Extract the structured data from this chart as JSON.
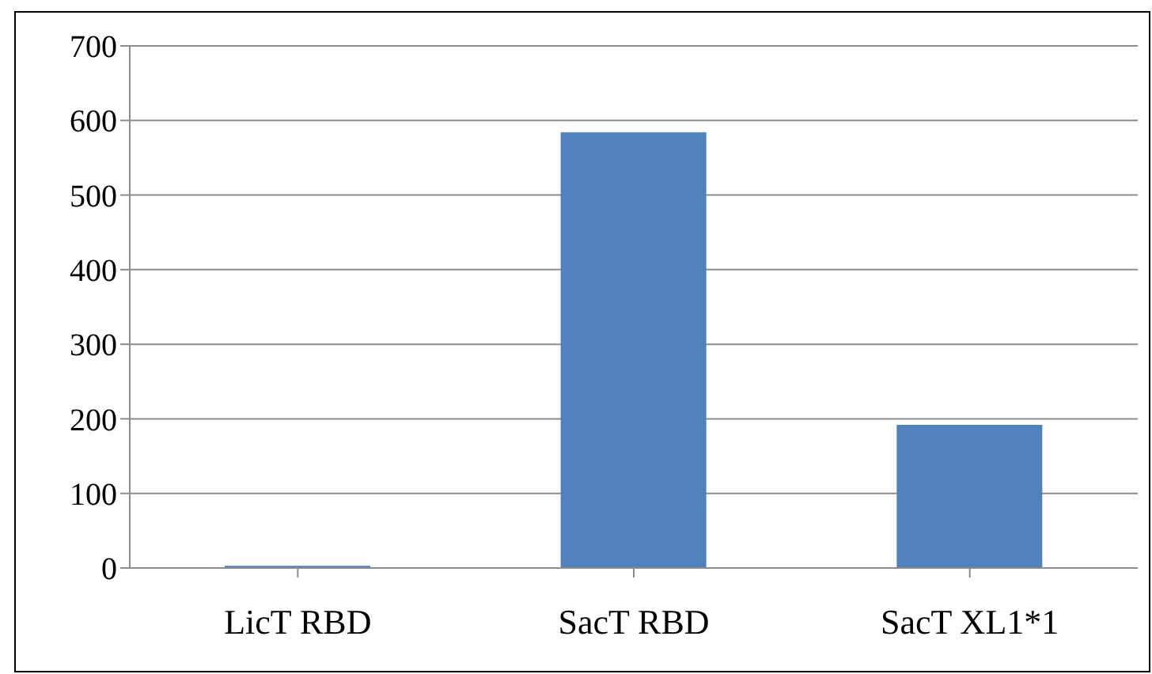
{
  "chart_data": {
    "type": "bar",
    "categories": [
      "LicT RBD",
      "SacT RBD",
      "SacT XL1*1"
    ],
    "values": [
      3,
      584,
      192
    ],
    "color": "#4f81bd",
    "ylim": [
      0,
      700
    ],
    "yticks": [
      0,
      100,
      200,
      300,
      400,
      500,
      600,
      700
    ],
    "grid": "y",
    "legend": false
  }
}
